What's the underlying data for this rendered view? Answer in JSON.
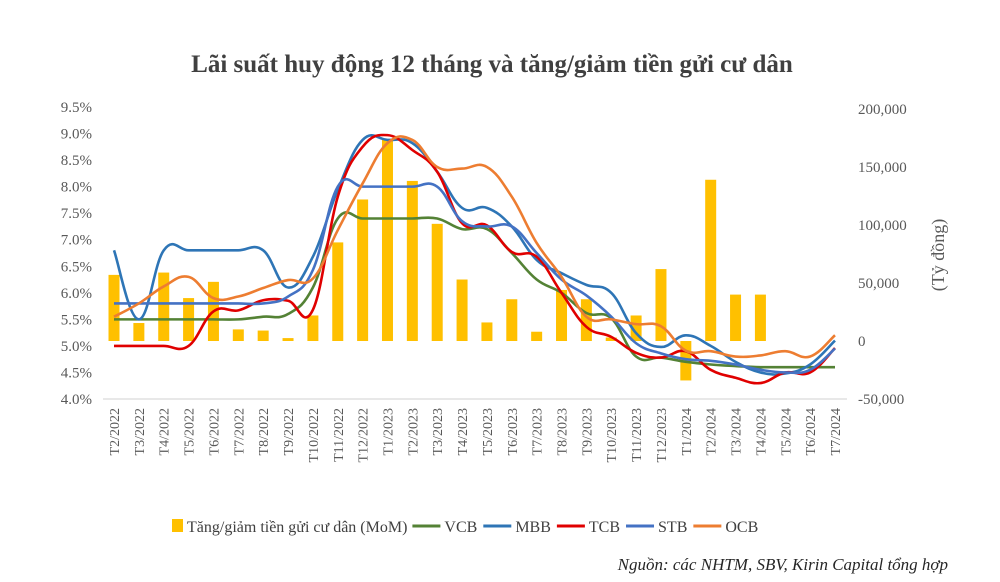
{
  "chart_data": {
    "type": "bar+line",
    "title": "Lãi suất huy động 12 tháng và tăng/giảm tiền gửi cư dân",
    "source": "Nguồn: các NHTM, SBV, Kirin Capital tổng hợp",
    "xlabel": "",
    "ylabel_left": "",
    "ylabel_right": "(Tỷ đồng)",
    "ylim_left": [
      4.0,
      9.5
    ],
    "ylim_right": [
      -50000,
      200000
    ],
    "left_ticks": [
      "4.0%",
      "4.5%",
      "5.0%",
      "5.5%",
      "6.0%",
      "6.5%",
      "7.0%",
      "7.5%",
      "8.0%",
      "8.5%",
      "9.0%",
      "9.5%"
    ],
    "right_ticks": [
      "-50,000",
      "0",
      "50,000",
      "100,000",
      "150,000",
      "200,000"
    ],
    "grid": false,
    "legend_position": "bottom",
    "categories": [
      "T2/2022",
      "T3/2022",
      "T4/2022",
      "T5/2022",
      "T6/2022",
      "T7/2022",
      "T8/2022",
      "T9/2022",
      "T10/2022",
      "T11/2022",
      "T12/2022",
      "T1/2023",
      "T2/2023",
      "T3/2023",
      "T4/2023",
      "T5/2023",
      "T6/2023",
      "T7/2023",
      "T8/2023",
      "T9/2023",
      "T10/2023",
      "T11/2023",
      "T12/2023",
      "T1/2024",
      "T2/2024",
      "T3/2024",
      "T4/2024",
      "T5/2024",
      "T6/2024",
      "T7/2024"
    ],
    "bars": {
      "name": "Tăng/giảm tiền gửi cư dân (MoM)",
      "axis": "right",
      "color": "#FFC000",
      "values": [
        57000,
        15500,
        59000,
        37000,
        51000,
        10000,
        9000,
        2500,
        22000,
        85000,
        122000,
        174000,
        138000,
        101000,
        53000,
        16000,
        36000,
        8000,
        44000,
        36000,
        3000,
        22000,
        62000,
        -34000,
        139000,
        40000,
        40000,
        0,
        0,
        0
      ]
    },
    "series": [
      {
        "name": "VCB",
        "color": "#548235",
        "values": [
          5.5,
          5.5,
          5.5,
          5.5,
          5.5,
          5.5,
          5.55,
          5.6,
          6.1,
          7.4,
          7.4,
          7.4,
          7.4,
          7.4,
          7.2,
          7.2,
          6.75,
          6.25,
          6.0,
          5.62,
          5.52,
          4.8,
          4.78,
          4.7,
          4.65,
          4.62,
          4.6,
          4.6,
          4.6,
          4.6
        ]
      },
      {
        "name": "MBB",
        "color": "#2E75B6",
        "values": [
          6.8,
          5.5,
          6.8,
          6.8,
          6.8,
          6.8,
          6.8,
          6.1,
          6.68,
          7.94,
          8.88,
          8.88,
          8.82,
          8.28,
          7.6,
          7.6,
          7.25,
          6.62,
          6.37,
          6.15,
          6.0,
          5.24,
          4.98,
          5.2,
          5.0,
          4.7,
          4.5,
          4.48,
          4.65,
          5.1
        ]
      },
      {
        "name": "TCB",
        "color": "#E00000",
        "values": [
          5.0,
          5.0,
          5.0,
          5.0,
          5.65,
          5.67,
          5.86,
          5.85,
          5.68,
          7.81,
          8.75,
          8.97,
          8.69,
          8.28,
          7.31,
          7.27,
          6.77,
          6.68,
          6.0,
          5.36,
          5.17,
          4.87,
          4.78,
          4.9,
          4.55,
          4.4,
          4.3,
          4.5,
          4.5,
          4.96
        ]
      },
      {
        "name": "STB",
        "color": "#4472C4",
        "values": [
          5.8,
          5.8,
          5.8,
          5.8,
          5.8,
          5.8,
          5.8,
          5.93,
          6.43,
          8.0,
          8.0,
          8.0,
          8.0,
          8.0,
          7.35,
          7.25,
          7.25,
          6.75,
          6.25,
          5.95,
          5.55,
          5.05,
          4.86,
          4.75,
          4.72,
          4.65,
          4.55,
          4.5,
          4.55,
          4.95
        ]
      },
      {
        "name": "OCB",
        "color": "#ED7D31",
        "values": [
          5.55,
          5.8,
          6.12,
          6.3,
          5.9,
          5.93,
          6.09,
          6.24,
          6.27,
          7.18,
          8.06,
          8.82,
          8.88,
          8.37,
          8.34,
          8.37,
          7.81,
          6.94,
          6.3,
          5.55,
          5.5,
          5.41,
          5.37,
          4.91,
          4.9,
          4.8,
          4.82,
          4.9,
          4.8,
          5.2
        ]
      }
    ]
  }
}
